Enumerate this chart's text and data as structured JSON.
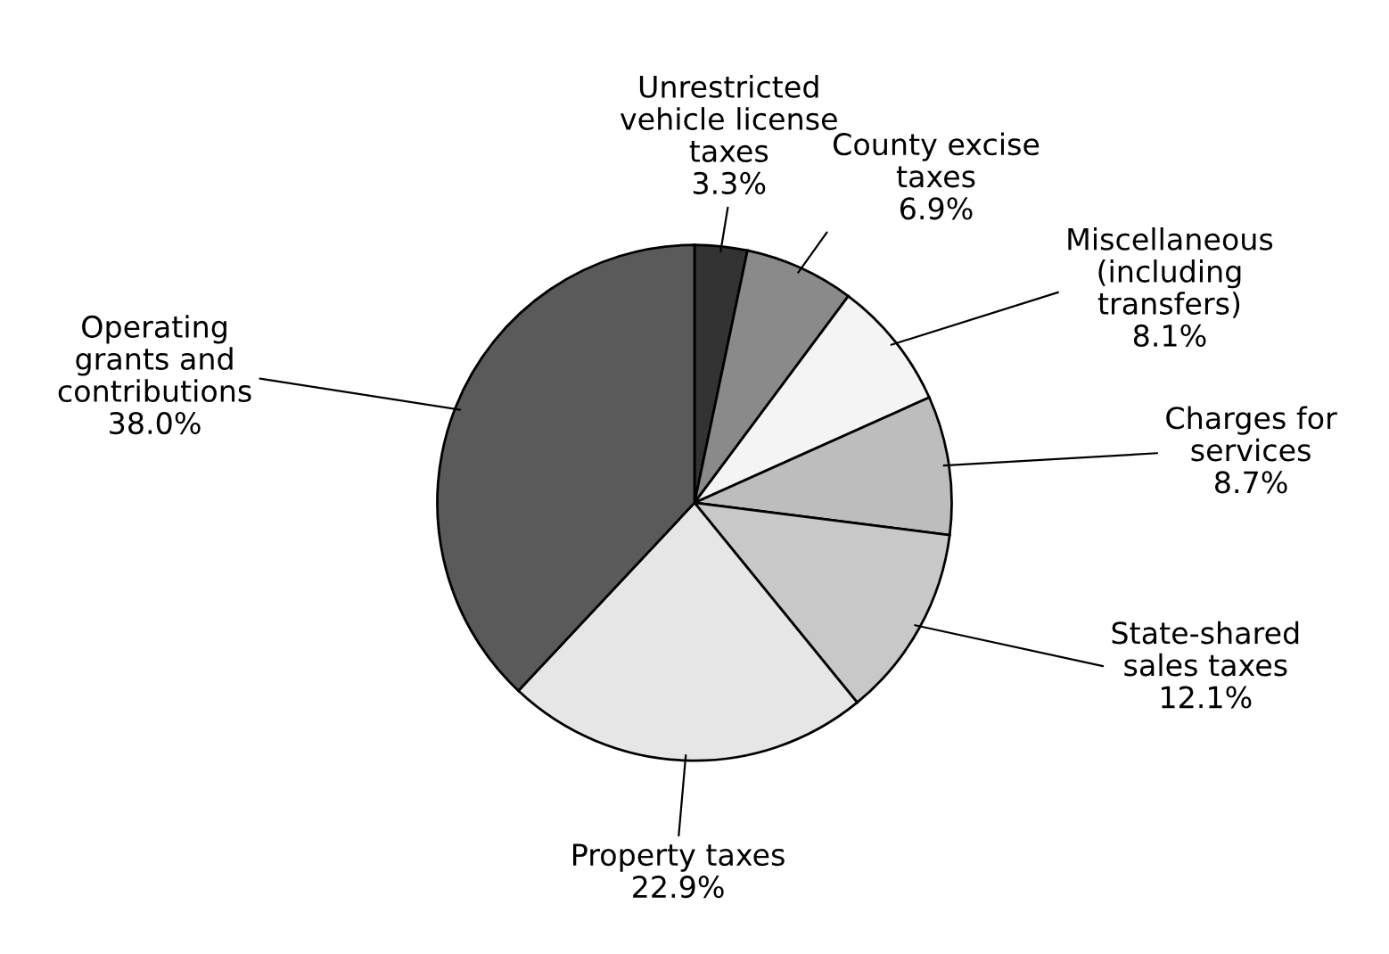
{
  "chart_data": {
    "type": "pie",
    "categories": [
      "Unrestricted\nvehicle license\ntaxes",
      "County excise\ntaxes",
      "Miscellaneous\n(including\ntransfers)",
      "Charges for\nservices",
      "State-shared\nsales taxes",
      "Property taxes",
      "Operating\ngrants and\ncontributions"
    ],
    "values": [
      3.3,
      6.9,
      8.1,
      8.7,
      12.1,
      22.9,
      38.0
    ],
    "value_labels": [
      "3.3%",
      "6.9%",
      "8.1%",
      "8.7%",
      "12.1%",
      "22.9%",
      "38.0%"
    ],
    "colors": [
      "#333333",
      "#8a8a8a",
      "#f4f4f4",
      "#bdbdbd",
      "#c8c8c8",
      "#e6e6e6",
      "#5a5a5a"
    ]
  }
}
